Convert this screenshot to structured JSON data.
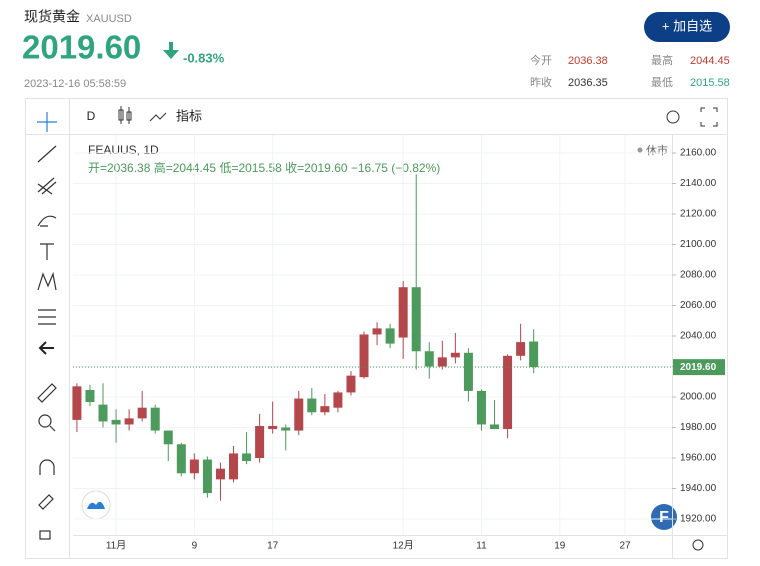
{
  "header": {
    "name": "现货黄金",
    "symbol": "XAUUSD",
    "price": "2019.60",
    "change": "-0.83%",
    "time": "2023-12-16 05:58:59",
    "button": "+ 加自选",
    "stats": [
      {
        "label": "今开",
        "value": "2036.38"
      },
      {
        "label": "最高",
        "value": "2044.45"
      },
      {
        "label": "昨收",
        "value": "2036.35"
      },
      {
        "label": "最低",
        "value": "2015.58"
      }
    ]
  },
  "toolbar": {
    "interval": "D",
    "indicators": "指标"
  },
  "chart_data": {
    "type": "candlestick",
    "title": "FEAUUS, 1D",
    "ohlc_legend": "开=2036.38  高=2044.45  低=2015.58  收=2019.60  −16.75 (−0.82%)",
    "status": "休市",
    "up_color": "#b3474c",
    "down_color": "#4c9a5c",
    "x": [
      0,
      1,
      2,
      3,
      4,
      5,
      6,
      7,
      8,
      9,
      10,
      11,
      12,
      13,
      14,
      15,
      16,
      17,
      18,
      19,
      20,
      21,
      22,
      23,
      24,
      25,
      26,
      27,
      28,
      29,
      30,
      31,
      32,
      33,
      34,
      35
    ],
    "open": [
      1985,
      2004.6,
      1995,
      1985,
      1982,
      1986,
      1993,
      1978,
      1969,
      1950,
      1959,
      1946,
      1946,
      1963,
      1960,
      1979,
      1980,
      1978,
      1999,
      1990,
      1993,
      2003,
      2013,
      2041,
      2045,
      2039,
      2072,
      2030,
      2020,
      2026,
      2029,
      2004,
      1982,
      1979,
      2027,
      2036.38
    ],
    "high": [
      2009,
      2008,
      2009,
      1992,
      1992,
      2004,
      1995,
      1978,
      1970,
      1963,
      1961,
      1957,
      1968,
      1977,
      1989,
      1997,
      1982,
      2004,
      2006,
      2002,
      2004,
      2017,
      2043,
      2049,
      2048,
      2076,
      2146,
      2036,
      2037,
      2042,
      2032,
      2005,
      1998,
      2028,
      2048,
      2044.45
    ],
    "low": [
      1977,
      1994,
      1980,
      1970,
      1978,
      1984,
      1976,
      1958,
      1948,
      1946,
      1934,
      1932,
      1944,
      1956,
      1957,
      1976,
      1965,
      1975,
      1988,
      1988,
      1990,
      2001,
      2012,
      2034,
      2032,
      2025,
      2018,
      2012,
      2018,
      2022,
      1997,
      1978,
      1979,
      1973,
      2024,
      2015.58
    ],
    "close": [
      2007,
      1996.7,
      1984,
      1982,
      1986,
      1993,
      1978,
      1969,
      1950,
      1959,
      1937,
      1953,
      1963,
      1958,
      1981,
      1981,
      1978,
      1999,
      1990,
      1994,
      2003,
      2014,
      2041,
      2045,
      2035,
      2072,
      2030,
      2020,
      2026,
      2029,
      2004,
      1982,
      1979,
      2027,
      2036,
      2019.6
    ],
    "xlim": [
      -0.3,
      45.6
    ],
    "xticks": [
      {
        "value": 3,
        "label": "11月"
      },
      {
        "value": 9,
        "label": "9"
      },
      {
        "value": 15,
        "label": "17"
      },
      {
        "value": 25,
        "label": "12月"
      },
      {
        "value": 31,
        "label": "11"
      },
      {
        "value": 37,
        "label": "19"
      },
      {
        "value": 42,
        "label": "27"
      }
    ],
    "ylim": [
      1912.8,
      2171.8
    ],
    "yticks": [
      {
        "value": 1920,
        "label": "1920.00"
      },
      {
        "value": 1940,
        "label": "1940.00"
      },
      {
        "value": 1960,
        "label": "1960.00"
      },
      {
        "value": 1980,
        "label": "1980.00"
      },
      {
        "value": 2000,
        "label": "2000.00"
      },
      {
        "value": 2020,
        "label": "2020.00"
      },
      {
        "value": 2040,
        "label": "2040.00"
      },
      {
        "value": 2060,
        "label": "2060.00"
      },
      {
        "value": 2080,
        "label": "2080.00"
      },
      {
        "value": 2100,
        "label": "2100.00"
      },
      {
        "value": 2120,
        "label": "2120.00"
      },
      {
        "value": 2140,
        "label": "2140.00"
      },
      {
        "value": 2160,
        "label": "2160.00"
      }
    ],
    "grid": true
  }
}
